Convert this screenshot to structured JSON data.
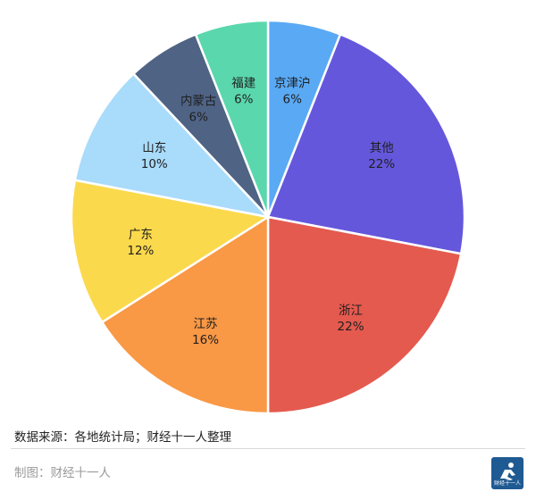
{
  "chart_data": {
    "type": "pie",
    "title": "",
    "slices": [
      {
        "label": "京津沪",
        "value": 6,
        "display": "6%",
        "color": "#5aa9f4"
      },
      {
        "label": "其他",
        "value": 22,
        "display": "22%",
        "color": "#6557dc"
      },
      {
        "label": "浙江",
        "value": 22,
        "display": "22%",
        "color": "#e45a4f"
      },
      {
        "label": "江苏",
        "value": 16,
        "display": "16%",
        "color": "#f99845"
      },
      {
        "label": "广东",
        "value": 12,
        "display": "12%",
        "color": "#fbd94d"
      },
      {
        "label": "山东",
        "value": 10,
        "display": "10%",
        "color": "#a9dbfb"
      },
      {
        "label": "内蒙古",
        "value": 6,
        "display": "6%",
        "color": "#4f6385"
      },
      {
        "label": "福建",
        "value": 6,
        "display": "6%",
        "color": "#5bd7ad"
      }
    ],
    "legend": "none"
  },
  "footer": {
    "source": "数据来源：各地统计局；财经十一人整理",
    "credit": "制图：财经十一人"
  },
  "logo": {
    "icon": "finance-eleven-logo-icon",
    "text": "财经十一人"
  }
}
